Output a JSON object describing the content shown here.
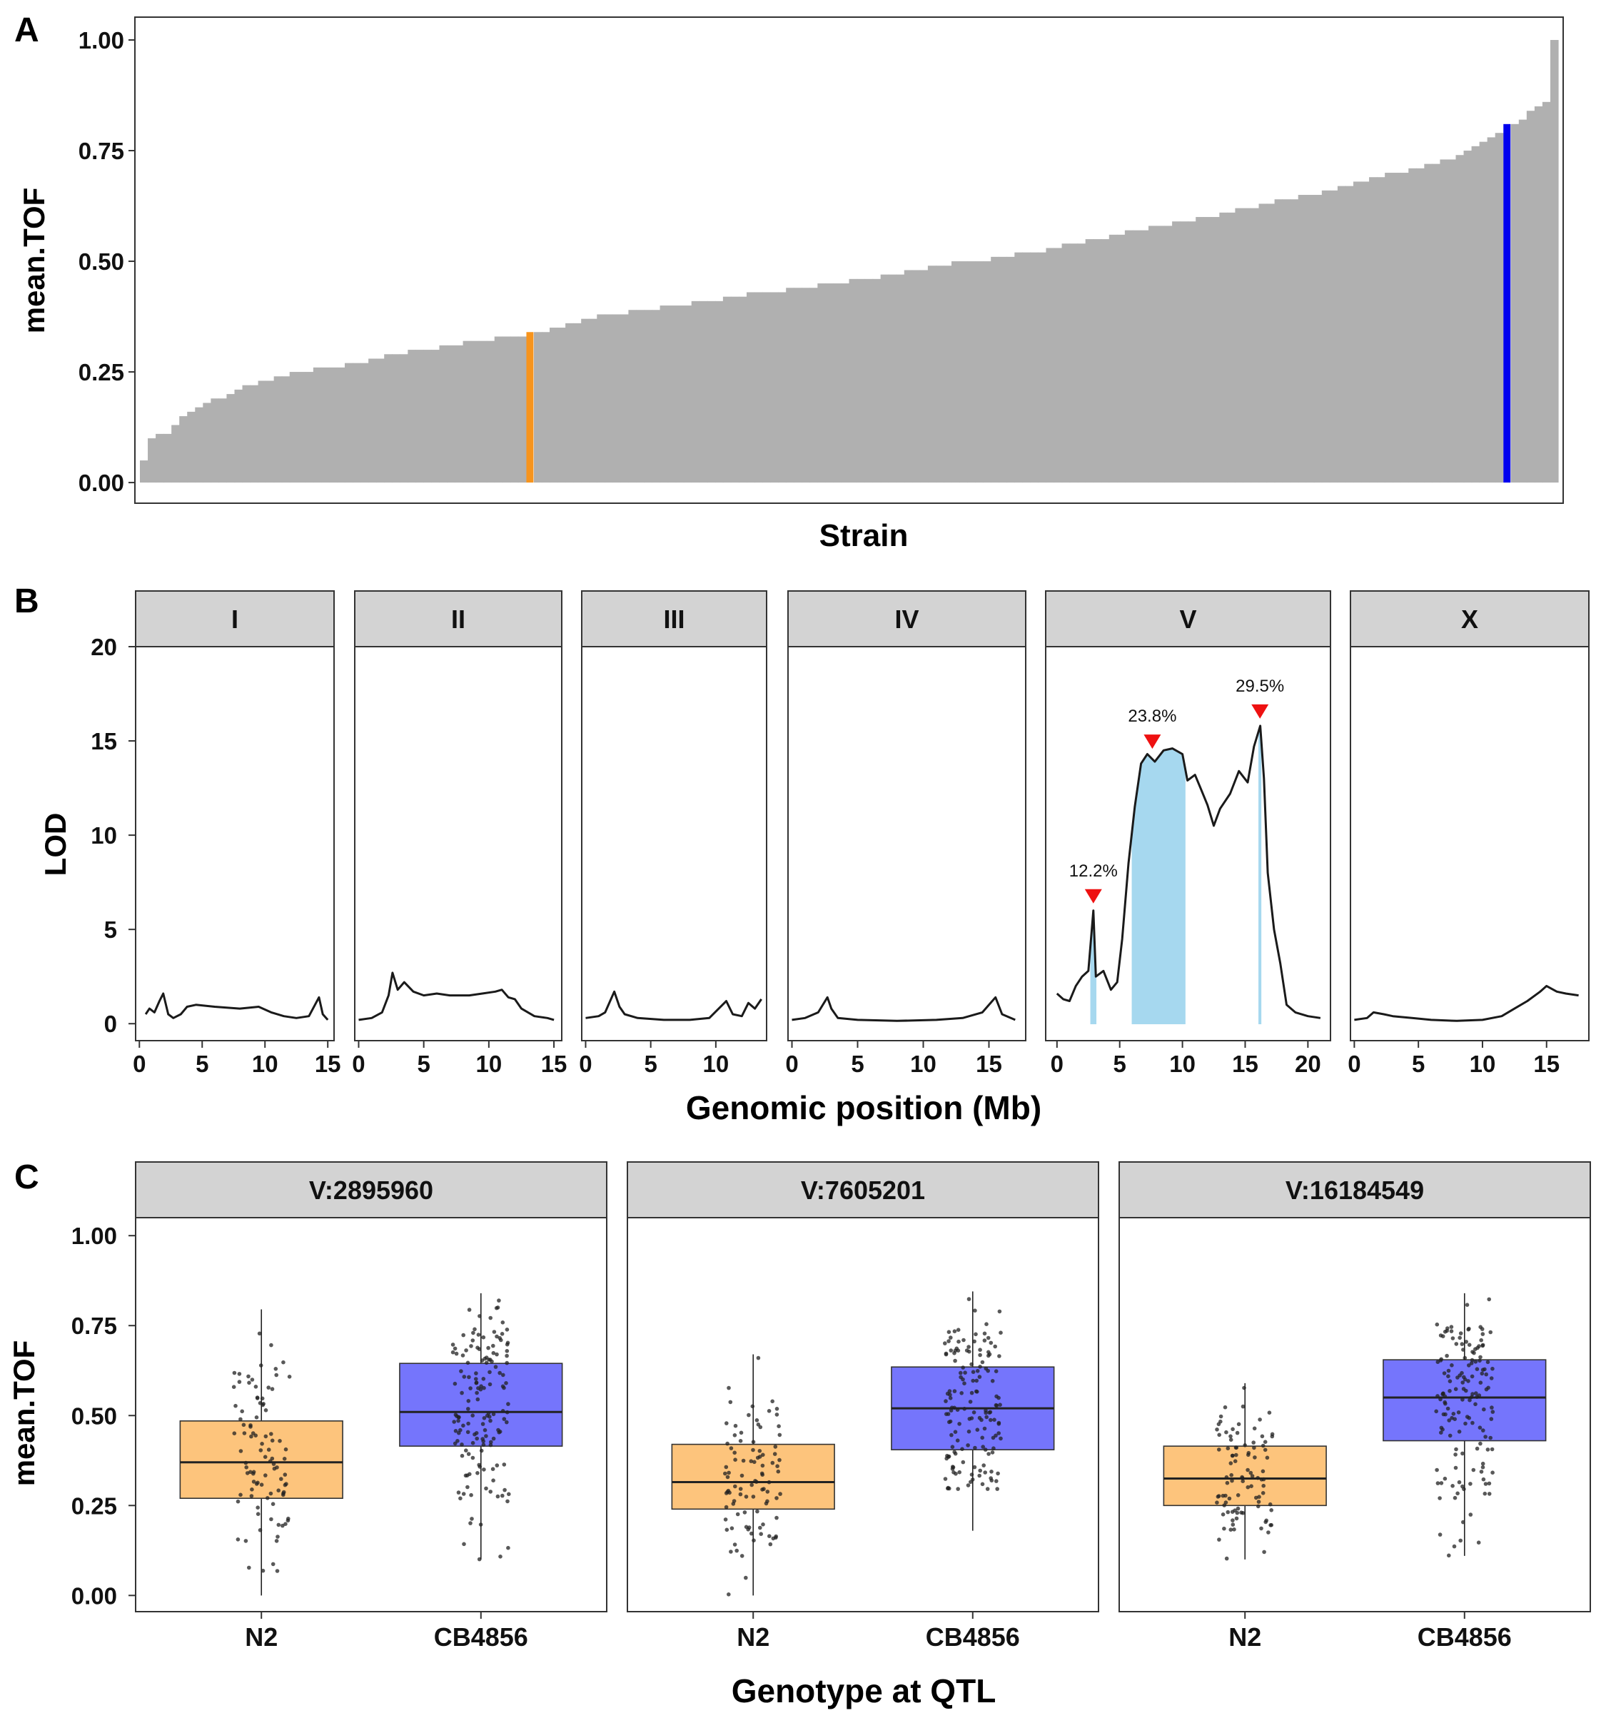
{
  "colors": {
    "bar_gray": "#b0b0b0",
    "highlight_orange": "#f7941d",
    "highlight_blue": "#0000ee",
    "strip_fill": "#d3d3d3",
    "lod_line": "#1a1a1a",
    "ci_fill": "#a6d8ef",
    "peak_marker": "#ee1111",
    "box_n2": "#fdc47c",
    "box_cb": "#7575fc",
    "point": "#222222"
  },
  "panel_a": {
    "label": "A",
    "ylabel": "mean.TOF",
    "xlabel": "Strain",
    "yticks": [
      "0.00",
      "0.25",
      "0.50",
      "0.75",
      "1.00"
    ],
    "chart_data": {
      "type": "bar",
      "ylim": [
        -0.045,
        1.05
      ],
      "values": [
        0.05,
        0.1,
        0.11,
        0.11,
        0.13,
        0.15,
        0.16,
        0.17,
        0.18,
        0.19,
        0.19,
        0.2,
        0.21,
        0.22,
        0.22,
        0.23,
        0.23,
        0.24,
        0.24,
        0.25,
        0.25,
        0.25,
        0.26,
        0.26,
        0.26,
        0.26,
        0.27,
        0.27,
        0.27,
        0.28,
        0.28,
        0.29,
        0.29,
        0.29,
        0.3,
        0.3,
        0.3,
        0.3,
        0.31,
        0.31,
        0.31,
        0.32,
        0.32,
        0.32,
        0.32,
        0.33,
        0.33,
        0.33,
        0.33,
        0.34,
        0.34,
        0.34,
        0.35,
        0.35,
        0.36,
        0.36,
        0.37,
        0.37,
        0.38,
        0.38,
        0.38,
        0.38,
        0.39,
        0.39,
        0.39,
        0.39,
        0.4,
        0.4,
        0.4,
        0.4,
        0.41,
        0.41,
        0.41,
        0.41,
        0.42,
        0.42,
        0.42,
        0.43,
        0.43,
        0.43,
        0.43,
        0.43,
        0.44,
        0.44,
        0.44,
        0.44,
        0.45,
        0.45,
        0.45,
        0.45,
        0.46,
        0.46,
        0.46,
        0.46,
        0.47,
        0.47,
        0.47,
        0.48,
        0.48,
        0.48,
        0.49,
        0.49,
        0.49,
        0.5,
        0.5,
        0.5,
        0.5,
        0.5,
        0.51,
        0.51,
        0.51,
        0.52,
        0.52,
        0.52,
        0.52,
        0.53,
        0.53,
        0.54,
        0.54,
        0.54,
        0.55,
        0.55,
        0.55,
        0.56,
        0.56,
        0.57,
        0.57,
        0.57,
        0.58,
        0.58,
        0.58,
        0.59,
        0.59,
        0.59,
        0.6,
        0.6,
        0.6,
        0.61,
        0.61,
        0.62,
        0.62,
        0.62,
        0.63,
        0.63,
        0.64,
        0.64,
        0.64,
        0.65,
        0.65,
        0.65,
        0.66,
        0.66,
        0.67,
        0.67,
        0.68,
        0.68,
        0.69,
        0.69,
        0.7,
        0.7,
        0.7,
        0.71,
        0.71,
        0.72,
        0.72,
        0.73,
        0.73,
        0.74,
        0.75,
        0.76,
        0.77,
        0.78,
        0.79,
        0.81,
        0.81,
        0.82,
        0.84,
        0.85,
        0.86,
        1.0
      ],
      "highlighted": [
        {
          "index": 49,
          "color": "orange"
        },
        {
          "index": 173,
          "color": "blue"
        }
      ]
    }
  },
  "panel_b": {
    "label": "B",
    "ylabel": "LOD",
    "xlabel": "Genomic position (Mb)",
    "yticks": [
      "0",
      "5",
      "10",
      "15",
      "20"
    ],
    "chart_data": {
      "type": "line",
      "ylim": [
        -0.9,
        20
      ],
      "facets": [
        {
          "name": "I",
          "xlim": [
            -0.3,
            15.5
          ],
          "xticks": [
            0,
            5,
            10,
            15
          ],
          "lod": [
            [
              0.5,
              0.5
            ],
            [
              0.8,
              0.8
            ],
            [
              1.2,
              0.6
            ],
            [
              1.6,
              1.2
            ],
            [
              1.9,
              1.6
            ],
            [
              2.3,
              0.5
            ],
            [
              2.7,
              0.3
            ],
            [
              3.3,
              0.5
            ],
            [
              3.8,
              0.9
            ],
            [
              4.5,
              1.0
            ],
            [
              6,
              0.9
            ],
            [
              8,
              0.8
            ],
            [
              9.5,
              0.9
            ],
            [
              10.5,
              0.6
            ],
            [
              11.5,
              0.4
            ],
            [
              12.5,
              0.3
            ],
            [
              13.5,
              0.4
            ],
            [
              14.3,
              1.4
            ],
            [
              14.6,
              0.5
            ],
            [
              15,
              0.2
            ]
          ],
          "peaks": [],
          "ci": []
        },
        {
          "name": "II",
          "xlim": [
            -0.3,
            15.6
          ],
          "xticks": [
            0,
            5,
            10,
            15
          ],
          "lod": [
            [
              0,
              0.2
            ],
            [
              1,
              0.3
            ],
            [
              1.8,
              0.6
            ],
            [
              2.3,
              1.5
            ],
            [
              2.6,
              2.7
            ],
            [
              3,
              1.8
            ],
            [
              3.5,
              2.2
            ],
            [
              4.2,
              1.7
            ],
            [
              5,
              1.5
            ],
            [
              6,
              1.6
            ],
            [
              7,
              1.5
            ],
            [
              8.5,
              1.5
            ],
            [
              9.5,
              1.6
            ],
            [
              10.5,
              1.7
            ],
            [
              11,
              1.8
            ],
            [
              11.5,
              1.4
            ],
            [
              12,
              1.3
            ],
            [
              12.5,
              0.8
            ],
            [
              13.5,
              0.4
            ],
            [
              14.5,
              0.3
            ],
            [
              15,
              0.2
            ]
          ],
          "peaks": [],
          "ci": []
        },
        {
          "name": "III",
          "xlim": [
            -0.3,
            13.9
          ],
          "xticks": [
            0,
            5,
            10
          ],
          "lod": [
            [
              0,
              0.3
            ],
            [
              1,
              0.4
            ],
            [
              1.5,
              0.6
            ],
            [
              2.2,
              1.7
            ],
            [
              2.6,
              0.9
            ],
            [
              3,
              0.5
            ],
            [
              4,
              0.3
            ],
            [
              6,
              0.2
            ],
            [
              8,
              0.2
            ],
            [
              9.5,
              0.3
            ],
            [
              10.8,
              1.2
            ],
            [
              11.3,
              0.5
            ],
            [
              12,
              0.4
            ],
            [
              12.5,
              1.1
            ],
            [
              13,
              0.8
            ],
            [
              13.5,
              1.3
            ]
          ],
          "peaks": [],
          "ci": []
        },
        {
          "name": "IV",
          "xlim": [
            -0.3,
            17.8
          ],
          "xticks": [
            0,
            5,
            10,
            15
          ],
          "lod": [
            [
              0,
              0.2
            ],
            [
              1,
              0.3
            ],
            [
              2,
              0.6
            ],
            [
              2.7,
              1.4
            ],
            [
              3,
              0.8
            ],
            [
              3.5,
              0.3
            ],
            [
              5,
              0.2
            ],
            [
              8,
              0.15
            ],
            [
              11,
              0.2
            ],
            [
              13,
              0.3
            ],
            [
              14.5,
              0.6
            ],
            [
              15.5,
              1.4
            ],
            [
              16,
              0.5
            ],
            [
              17,
              0.2
            ]
          ],
          "peaks": [],
          "ci": []
        },
        {
          "name": "V",
          "xlim": [
            -0.9,
            21.8
          ],
          "xticks": [
            0,
            5,
            10,
            15,
            20
          ],
          "lod": [
            [
              0,
              1.6
            ],
            [
              0.5,
              1.3
            ],
            [
              1,
              1.2
            ],
            [
              1.5,
              2.0
            ],
            [
              2,
              2.5
            ],
            [
              2.5,
              2.8
            ],
            [
              2.9,
              6.0
            ],
            [
              3.1,
              2.5
            ],
            [
              3.7,
              2.8
            ],
            [
              4.3,
              1.8
            ],
            [
              4.8,
              2.2
            ],
            [
              5.2,
              4.5
            ],
            [
              5.7,
              8.5
            ],
            [
              6.2,
              11.5
            ],
            [
              6.7,
              13.8
            ],
            [
              7.2,
              14.3
            ],
            [
              7.8,
              13.9
            ],
            [
              8.5,
              14.5
            ],
            [
              9.2,
              14.6
            ],
            [
              10,
              14.3
            ],
            [
              10.4,
              12.9
            ],
            [
              11,
              13.2
            ],
            [
              11.5,
              12.4
            ],
            [
              12,
              11.6
            ],
            [
              12.5,
              10.5
            ],
            [
              13,
              11.4
            ],
            [
              13.8,
              12.2
            ],
            [
              14.5,
              13.4
            ],
            [
              15.2,
              12.8
            ],
            [
              15.7,
              14.7
            ],
            [
              16.2,
              15.8
            ],
            [
              16.5,
              13.0
            ],
            [
              16.8,
              8.0
            ],
            [
              17.3,
              5.0
            ],
            [
              17.8,
              3.2
            ],
            [
              18.3,
              1.0
            ],
            [
              19,
              0.6
            ],
            [
              20,
              0.4
            ],
            [
              21,
              0.3
            ]
          ],
          "peaks": [
            {
              "x": 2.9,
              "y": 6.0,
              "label": "12.2%"
            },
            {
              "x": 7.6,
              "y": 14.2,
              "label": "23.8%"
            },
            {
              "x": 16.18,
              "y": 15.8,
              "label": "29.5%"
            }
          ],
          "ci": [
            [
              2.7,
              3.1
            ],
            [
              6.0,
              10.2
            ],
            [
              16.1,
              16.25
            ]
          ]
        },
        {
          "name": "X",
          "xlim": [
            -0.3,
            18.3
          ],
          "xticks": [
            0,
            5,
            10,
            15
          ],
          "lod": [
            [
              0,
              0.2
            ],
            [
              1,
              0.3
            ],
            [
              1.5,
              0.6
            ],
            [
              2.3,
              0.5
            ],
            [
              3,
              0.4
            ],
            [
              4.5,
              0.3
            ],
            [
              6,
              0.2
            ],
            [
              8,
              0.15
            ],
            [
              10,
              0.2
            ],
            [
              11.5,
              0.4
            ],
            [
              12.5,
              0.8
            ],
            [
              13.5,
              1.2
            ],
            [
              14.5,
              1.7
            ],
            [
              15,
              2.0
            ],
            [
              15.8,
              1.7
            ],
            [
              16.5,
              1.6
            ],
            [
              17.5,
              1.5
            ]
          ],
          "peaks": [],
          "ci": []
        }
      ]
    }
  },
  "panel_c": {
    "label": "C",
    "ylabel": "mean.TOF",
    "xlabel": "Genotype at QTL",
    "yticks": [
      "0.00",
      "0.25",
      "0.50",
      "0.75",
      "1.00"
    ],
    "categories": [
      "N2",
      "CB4856"
    ],
    "chart_data": {
      "type": "box",
      "ylim": [
        -0.045,
        1.05
      ],
      "facets": [
        {
          "name": "V:2895960",
          "boxes": [
            {
              "group": "N2",
              "min": 0.0,
              "q1": 0.27,
              "median": 0.37,
              "q3": 0.485,
              "max": 0.795
            },
            {
              "group": "CB4856",
              "min": 0.1,
              "q1": 0.415,
              "median": 0.51,
              "q3": 0.645,
              "max": 0.84
            }
          ]
        },
        {
          "name": "V:7605201",
          "boxes": [
            {
              "group": "N2",
              "min": 0.0,
              "q1": 0.24,
              "median": 0.315,
              "q3": 0.42,
              "max": 0.67
            },
            {
              "group": "CB4856",
              "min": 0.18,
              "q1": 0.405,
              "median": 0.52,
              "q3": 0.635,
              "max": 0.845
            }
          ]
        },
        {
          "name": "V:16184549",
          "boxes": [
            {
              "group": "N2",
              "min": 0.1,
              "q1": 0.25,
              "median": 0.325,
              "q3": 0.415,
              "max": 0.59
            },
            {
              "group": "CB4856",
              "min": 0.11,
              "q1": 0.43,
              "median": 0.55,
              "q3": 0.655,
              "max": 0.84
            }
          ]
        }
      ]
    }
  }
}
